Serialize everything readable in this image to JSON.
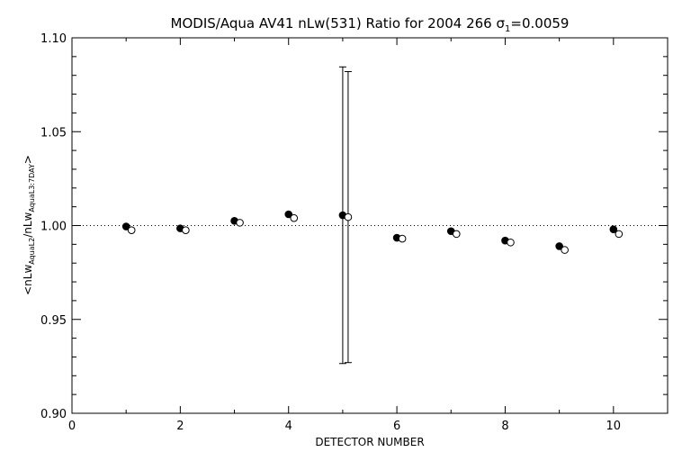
{
  "chart_data": {
    "type": "scatter",
    "title_prefix": "MODIS/Aqua AV41 nLw(531) Ratio for 2004 266 ",
    "title_sigma_symbol": "σ",
    "title_sigma_sub": "1",
    "title_sigma_value": "=0.0059",
    "xlabel": "DETECTOR NUMBER",
    "ylabel_prefix": "<nLw",
    "ylabel_sub1": "AquaL2",
    "ylabel_mid": "/nLw",
    "ylabel_sub2": "AquaL3:7DAY",
    "ylabel_suffix": ">",
    "xlim": [
      0,
      11
    ],
    "ylim": [
      0.9,
      1.1
    ],
    "xticks": [
      0,
      2,
      4,
      6,
      8,
      10
    ],
    "xtick_labels": [
      "0",
      "2",
      "4",
      "6",
      "8",
      "10"
    ],
    "yticks": [
      0.9,
      0.95,
      1.0,
      1.05,
      1.1
    ],
    "ytick_labels": [
      "0.90",
      "0.95",
      "1.00",
      "1.05",
      "1.10"
    ],
    "reference_line": 1.0,
    "series": [
      {
        "marker": "filled-circle",
        "x": [
          1,
          2,
          3,
          4,
          5,
          6,
          7,
          8,
          9,
          10
        ],
        "y": [
          0.9995,
          0.9985,
          1.0025,
          1.006,
          1.0055,
          0.9935,
          0.997,
          0.992,
          0.989,
          0.998
        ],
        "error_bars": [
          null,
          null,
          null,
          null,
          [
            0.9265,
            1.0845
          ],
          null,
          null,
          null,
          null,
          null
        ]
      },
      {
        "marker": "open-circle",
        "x": [
          1.1,
          2.1,
          3.1,
          4.1,
          5.1,
          6.1,
          7.1,
          8.1,
          9.1,
          10.1
        ],
        "y": [
          0.9975,
          0.9975,
          1.0015,
          1.004,
          1.0045,
          0.993,
          0.9955,
          0.991,
          0.987,
          0.9955
        ],
        "error_bars": [
          null,
          null,
          null,
          null,
          [
            0.927,
            1.082
          ],
          null,
          null,
          null,
          null,
          null
        ]
      }
    ]
  }
}
